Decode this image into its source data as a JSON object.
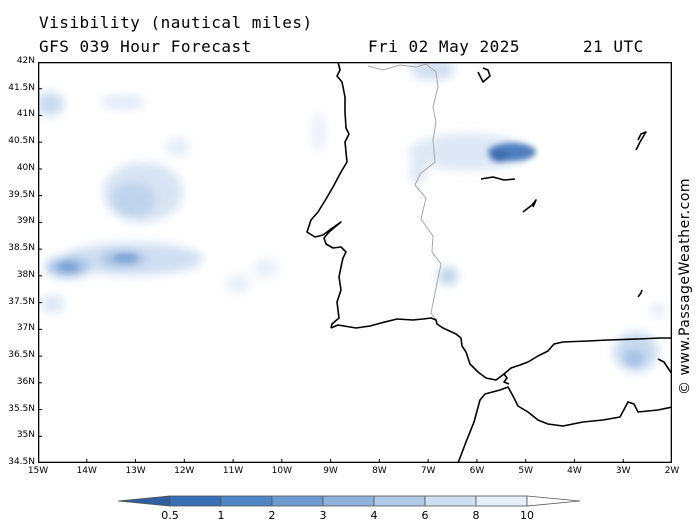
{
  "header": {
    "title_line1": "Visibility (nautical miles)",
    "title_line2": "GFS 039 Hour Forecast",
    "date": "Fri 02 May 2025",
    "time": "21 UTC"
  },
  "map": {
    "y_labels": [
      "42N",
      "41.5N",
      "41N",
      "40.5N",
      "40N",
      "39.5N",
      "39N",
      "38.5N",
      "38N",
      "37.5N",
      "37N",
      "36.5N",
      "36N",
      "35.5N",
      "35N",
      "34.5N"
    ],
    "x_labels": [
      "15W",
      "14W",
      "13W",
      "12W",
      "11W",
      "10W",
      "9W",
      "8W",
      "7W",
      "6W",
      "5W",
      "4W",
      "3W",
      "2W"
    ]
  },
  "legend": {
    "labels": [
      "0.5",
      "1",
      "2",
      "3",
      "4",
      "6",
      "8",
      "10"
    ],
    "colors": [
      "#3a6eb5",
      "#4f86c6",
      "#6e9bd2",
      "#8fb1dc",
      "#b0c9e7",
      "#cfdef1",
      "#e6eef8",
      "#ffffff"
    ]
  },
  "credit": "© www.PassageWeather.com"
}
